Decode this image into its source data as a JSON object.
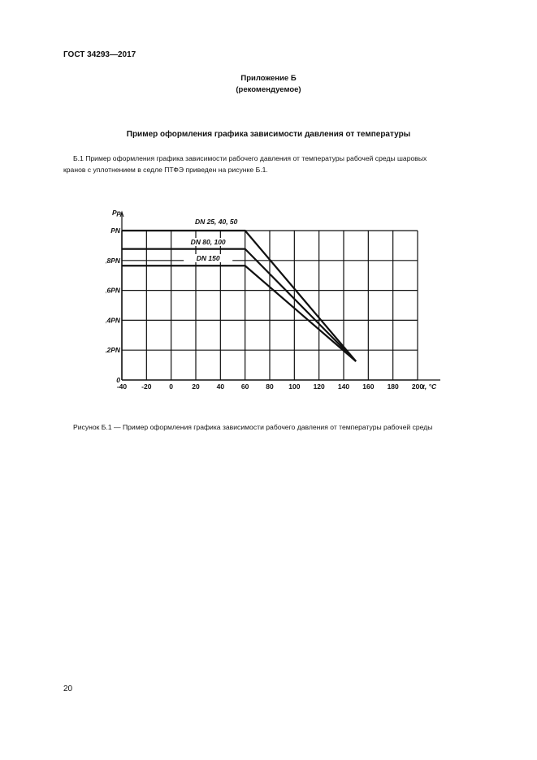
{
  "header": {
    "standard": "ГОСТ 34293—2017"
  },
  "appendix": {
    "title": "Приложение Б",
    "subtitle": "(рекомендуемое)"
  },
  "section_title": "Пример оформления графика зависимости давления от температуры",
  "paragraph": {
    "line1": "Б.1  Пример оформления графика зависимости рабочего давления от температуры рабочей среды шаровых",
    "line2": "кранов с уплотнением в седле ПТФЭ приведен на рисунке Б.1."
  },
  "caption": "Рисунок Б.1 — Пример оформления графика зависимости рабочего давления от температуры рабочей среды",
  "page_number": "20",
  "chart_data": {
    "type": "line",
    "xlabel": "t, °C",
    "ylabel": "Pр",
    "xlim": [
      -40,
      200
    ],
    "ylim": [
      0,
      1
    ],
    "grid": true,
    "x_ticks": [
      -40,
      -20,
      0,
      20,
      40,
      60,
      80,
      100,
      120,
      140,
      160,
      180,
      200
    ],
    "x_tick_labels": [
      "-40",
      "-20",
      "0",
      "20",
      "40",
      "60",
      "80",
      "100",
      "120",
      "140",
      "160",
      "180",
      "200"
    ],
    "y_ticks": [
      0,
      0.2,
      0.4,
      0.6,
      0.8,
      1
    ],
    "y_tick_labels": [
      "0",
      "0,2PN",
      "0,4PN",
      "0,6PN",
      "0,8PN",
      "PN"
    ],
    "series": [
      {
        "name": "DN 25, 40, 50",
        "x": [
          -40,
          60,
          150
        ],
        "y": [
          1.0,
          1.0,
          0.125
        ]
      },
      {
        "name": "DN 80, 100",
        "x": [
          -40,
          60,
          150
        ],
        "y": [
          0.877,
          0.877,
          0.125
        ]
      },
      {
        "name": "DN 150",
        "x": [
          -40,
          60,
          150
        ],
        "y": [
          0.765,
          0.765,
          0.125
        ]
      }
    ]
  }
}
